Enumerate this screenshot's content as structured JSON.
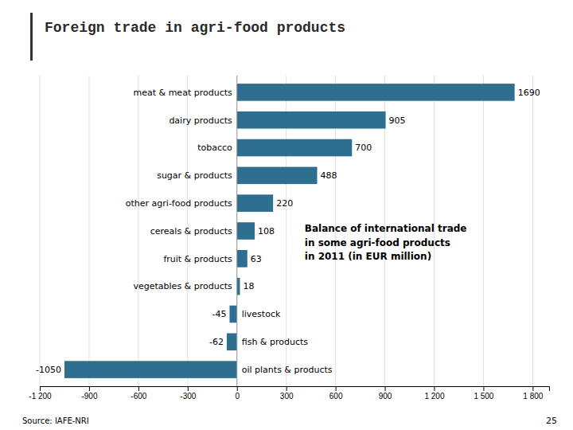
{
  "chart_data": {
    "type": "bar",
    "orientation": "horizontal",
    "title": "Foreign trade in agri-food products",
    "subtitle": "Balance of international trade\nin some agri-food products\nin 2011 (in EUR million)",
    "annotations": [
      "Source: IAFE-NRI",
      "25"
    ],
    "categories": [
      "meat & meat products",
      "dairy products",
      "tobacco",
      "sugar & products",
      "other agri-food products",
      "cereals & products",
      "fruit & products",
      "vegetables & products",
      "livestock",
      "fish & products",
      "oil plants & products"
    ],
    "values": [
      1690,
      905,
      700,
      488,
      220,
      108,
      63,
      18,
      -45,
      -62,
      -1050
    ],
    "color": "#2e6e8e",
    "xlim": [
      -1200,
      1900
    ],
    "xticks": [
      {
        "value": -1200,
        "label": "-1 200"
      },
      -900,
      -600,
      -300,
      0,
      300,
      600,
      900,
      {
        "value": 1200,
        "label": "1 200"
      },
      {
        "value": 1500,
        "label": "1 500"
      },
      {
        "value": 1800,
        "label": "1 800"
      }
    ],
    "grid": true,
    "data_labels": true
  }
}
